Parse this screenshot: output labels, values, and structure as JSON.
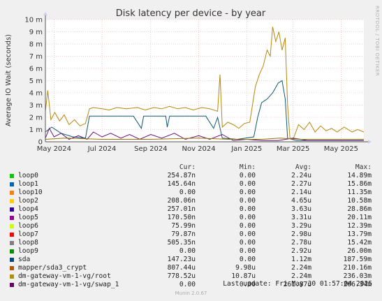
{
  "chart_data": {
    "type": "line",
    "title": "Disk latency per device - by year",
    "ylabel": "Average IO Wait (seconds)",
    "side_label": "RRDTOOL / TOBI OETIKER",
    "y_ticks": [
      {
        "v": 0,
        "label": "0"
      },
      {
        "v": 0.001,
        "label": "1 m"
      },
      {
        "v": 0.002,
        "label": "2 m"
      },
      {
        "v": 0.003,
        "label": "3 m"
      },
      {
        "v": 0.004,
        "label": "4 m"
      },
      {
        "v": 0.005,
        "label": "5 m"
      },
      {
        "v": 0.006,
        "label": "6 m"
      },
      {
        "v": 0.007,
        "label": "7 m"
      },
      {
        "v": 0.008,
        "label": "8 m"
      },
      {
        "v": 0.009,
        "label": "9 m"
      },
      {
        "v": 0.01,
        "label": "10 m"
      }
    ],
    "ylim": [
      0,
      0.01
    ],
    "x_range": [
      "2024-04-20",
      "2025-05-30"
    ],
    "x_ticks": [
      {
        "date": "2024-05-01",
        "label": "May 2024"
      },
      {
        "date": "2024-07-01",
        "label": "Jul 2024"
      },
      {
        "date": "2024-09-01",
        "label": "Sep 2024"
      },
      {
        "date": "2024-11-01",
        "label": "Nov 2024"
      },
      {
        "date": "2025-01-01",
        "label": "Jan 2025"
      },
      {
        "date": "2025-03-01",
        "label": "Mar 2025"
      },
      {
        "date": "2025-05-01",
        "label": "May 2025"
      }
    ],
    "grid": true,
    "series": [
      {
        "name": "dm-gateway-vm-1-vg/root",
        "color": "#b8860b",
        "points": [
          [
            "2024-04-20",
            0.0025
          ],
          [
            "2024-04-23",
            0.0042
          ],
          [
            "2024-04-27",
            0.0018
          ],
          [
            "2024-05-02",
            0.0024
          ],
          [
            "2024-05-08",
            0.0017
          ],
          [
            "2024-05-14",
            0.0022
          ],
          [
            "2024-05-20",
            0.0014
          ],
          [
            "2024-05-27",
            0.0018
          ],
          [
            "2024-06-03",
            0.0013
          ],
          [
            "2024-06-10",
            0.0015
          ],
          [
            "2024-06-15",
            0.0027
          ],
          [
            "2024-06-20",
            0.0028
          ],
          [
            "2024-07-01",
            0.0027
          ],
          [
            "2024-07-10",
            0.0026
          ],
          [
            "2024-07-20",
            0.0028
          ],
          [
            "2024-08-01",
            0.0027
          ],
          [
            "2024-08-15",
            0.0028
          ],
          [
            "2024-08-25",
            0.0026
          ],
          [
            "2024-09-05",
            0.0028
          ],
          [
            "2024-09-15",
            0.0027
          ],
          [
            "2024-09-25",
            0.0029
          ],
          [
            "2024-10-05",
            0.0027
          ],
          [
            "2024-10-15",
            0.0028
          ],
          [
            "2024-10-25",
            0.0026
          ],
          [
            "2024-11-05",
            0.0028
          ],
          [
            "2024-11-15",
            0.0027
          ],
          [
            "2024-11-25",
            0.0025
          ],
          [
            "2024-11-28",
            0.0055
          ],
          [
            "2024-12-01",
            0.0012
          ],
          [
            "2024-12-08",
            0.0016
          ],
          [
            "2024-12-15",
            0.0014
          ],
          [
            "2024-12-22",
            0.0011
          ],
          [
            "2024-12-29",
            0.0015
          ],
          [
            "2025-01-05",
            0.0016
          ],
          [
            "2025-01-12",
            0.0045
          ],
          [
            "2025-01-17",
            0.0055
          ],
          [
            "2025-01-22",
            0.0062
          ],
          [
            "2025-01-27",
            0.0075
          ],
          [
            "2025-01-31",
            0.007
          ],
          [
            "2025-02-03",
            0.0094
          ],
          [
            "2025-02-07",
            0.0082
          ],
          [
            "2025-02-11",
            0.009
          ],
          [
            "2025-02-15",
            0.0075
          ],
          [
            "2025-02-19",
            0.0085
          ],
          [
            "2025-02-22",
            0.003
          ],
          [
            "2025-02-25",
            0.0003
          ],
          [
            "2025-03-01",
            0.0002
          ],
          [
            "2025-03-08",
            0.0014
          ],
          [
            "2025-03-15",
            0.001
          ],
          [
            "2025-03-22",
            0.0016
          ],
          [
            "2025-03-29",
            0.0008
          ],
          [
            "2025-04-05",
            0.0013
          ],
          [
            "2025-04-12",
            0.0009
          ],
          [
            "2025-04-19",
            0.0011
          ],
          [
            "2025-04-26",
            0.0008
          ],
          [
            "2025-05-05",
            0.0012
          ],
          [
            "2025-05-15",
            0.0008
          ],
          [
            "2025-05-22",
            0.001
          ],
          [
            "2025-05-30",
            0.0008
          ]
        ]
      },
      {
        "name": "sda",
        "color": "#0b5a73",
        "points": [
          [
            "2024-04-20",
            0.0008
          ],
          [
            "2024-04-28",
            0.0012
          ],
          [
            "2024-05-10",
            0.0007
          ],
          [
            "2024-05-25",
            0.0004
          ],
          [
            "2024-06-10",
            0.0003
          ],
          [
            "2024-06-15",
            0.0021
          ],
          [
            "2024-07-01",
            0.0021
          ],
          [
            "2024-07-20",
            0.0021
          ],
          [
            "2024-08-10",
            0.0021
          ],
          [
            "2024-08-20",
            0.0011
          ],
          [
            "2024-08-23",
            0.0021
          ],
          [
            "2024-09-10",
            0.0021
          ],
          [
            "2024-09-20",
            0.0021
          ],
          [
            "2024-09-22",
            0.0012
          ],
          [
            "2024-09-25",
            0.0021
          ],
          [
            "2024-10-15",
            0.0021
          ],
          [
            "2024-11-10",
            0.0021
          ],
          [
            "2024-11-20",
            0.0011
          ],
          [
            "2024-11-25",
            0.002
          ],
          [
            "2024-12-01",
            0.0003
          ],
          [
            "2024-12-20",
            0.0002
          ],
          [
            "2025-01-10",
            0.0004
          ],
          [
            "2025-01-15",
            0.002
          ],
          [
            "2025-01-20",
            0.0032
          ],
          [
            "2025-01-27",
            0.0035
          ],
          [
            "2025-02-03",
            0.004
          ],
          [
            "2025-02-10",
            0.0048
          ],
          [
            "2025-02-15",
            0.005
          ],
          [
            "2025-02-19",
            0.0035
          ],
          [
            "2025-02-22",
            0.0003
          ],
          [
            "2025-03-05",
            0.0001
          ],
          [
            "2025-04-01",
            0.0001
          ],
          [
            "2025-05-30",
            0.0001
          ]
        ]
      },
      {
        "name": "dm-gateway-vm-1-vg/swap_1",
        "color": "#66137a",
        "points": [
          [
            "2024-04-20",
            0.0003
          ],
          [
            "2024-04-25",
            0.0011
          ],
          [
            "2024-05-01",
            0.0004
          ],
          [
            "2024-05-10",
            0.0007
          ],
          [
            "2024-05-20",
            0.0002
          ],
          [
            "2024-06-01",
            0.0005
          ],
          [
            "2024-06-12",
            0.0002
          ],
          [
            "2024-06-20",
            0.0008
          ],
          [
            "2024-07-01",
            0.0004
          ],
          [
            "2024-07-12",
            0.0007
          ],
          [
            "2024-07-25",
            0.0003
          ],
          [
            "2024-08-05",
            0.0006
          ],
          [
            "2024-08-18",
            0.0002
          ],
          [
            "2024-09-01",
            0.0006
          ],
          [
            "2024-09-15",
            0.0003
          ],
          [
            "2024-10-01",
            0.0007
          ],
          [
            "2024-10-15",
            0.0002
          ],
          [
            "2024-11-01",
            0.0005
          ],
          [
            "2024-11-15",
            0.0002
          ],
          [
            "2024-12-01",
            0.0006
          ],
          [
            "2024-12-15",
            0.0001
          ],
          [
            "2025-01-01",
            0.0002
          ],
          [
            "2025-01-20",
            0.0001
          ],
          [
            "2025-02-10",
            0.0001
          ],
          [
            "2025-03-01",
            0.0003
          ],
          [
            "2025-03-20",
            0.0001
          ],
          [
            "2025-04-10",
            0.0001
          ],
          [
            "2025-05-30",
            0.0001
          ]
        ]
      },
      {
        "name": "mapper/sda3_crypt",
        "color": "#9b6f00",
        "points": [
          [
            "2024-04-20",
            0.0002
          ],
          [
            "2024-05-15",
            0.0003
          ],
          [
            "2024-07-01",
            0.0002
          ],
          [
            "2024-09-01",
            0.0002
          ],
          [
            "2024-11-01",
            0.0003
          ],
          [
            "2024-12-10",
            0.0002
          ],
          [
            "2025-01-20",
            0.0002
          ],
          [
            "2025-02-12",
            0.0003
          ],
          [
            "2025-03-10",
            0.0002
          ],
          [
            "2025-05-30",
            0.0002
          ]
        ]
      }
    ]
  },
  "legend": {
    "headers": {
      "cur": "Cur:",
      "min": "Min:",
      "avg": "Avg:",
      "max": "Max:"
    },
    "rows": [
      {
        "name": "loop0",
        "color": "#00cc00",
        "cur": "254.87n",
        "min": "0.00",
        "avg": "2.24u",
        "max": "14.89m"
      },
      {
        "name": "loop1",
        "color": "#0066b3",
        "cur": "145.64n",
        "min": "0.00",
        "avg": "2.27u",
        "max": "15.86m"
      },
      {
        "name": "loop10",
        "color": "#ff8000",
        "cur": "0.00",
        "min": "0.00",
        "avg": "2.14u",
        "max": "11.35m"
      },
      {
        "name": "loop2",
        "color": "#ffcc00",
        "cur": "208.06n",
        "min": "0.00",
        "avg": "4.65u",
        "max": "10.58m"
      },
      {
        "name": "loop4",
        "color": "#330099",
        "cur": "257.01n",
        "min": "0.00",
        "avg": "3.63u",
        "max": "28.86m"
      },
      {
        "name": "loop5",
        "color": "#990099",
        "cur": "170.50n",
        "min": "0.00",
        "avg": "3.31u",
        "max": "20.11m"
      },
      {
        "name": "loop6",
        "color": "#ccff00",
        "cur": "75.99n",
        "min": "0.00",
        "avg": "3.29u",
        "max": "12.39m"
      },
      {
        "name": "loop7",
        "color": "#ff0000",
        "cur": "79.87n",
        "min": "0.00",
        "avg": "2.98u",
        "max": "13.79m"
      },
      {
        "name": "loop8",
        "color": "#808080",
        "cur": "505.35n",
        "min": "0.00",
        "avg": "2.78u",
        "max": "15.42m"
      },
      {
        "name": "loop9",
        "color": "#008f00",
        "cur": "0.00",
        "min": "0.00",
        "avg": "2.92u",
        "max": "26.00m"
      },
      {
        "name": "sda",
        "color": "#00487d",
        "cur": "147.23u",
        "min": "0.00",
        "avg": "1.12m",
        "max": "187.59m"
      },
      {
        "name": "mapper/sda3_crypt",
        "color": "#b35a00",
        "cur": "807.44u",
        "min": "9.98u",
        "avg": "2.24m",
        "max": "210.16m"
      },
      {
        "name": "dm-gateway-vm-1-vg/root",
        "color": "#b38f00",
        "cur": "778.52u",
        "min": "10.87u",
        "avg": "2.24m",
        "max": "236.03m"
      },
      {
        "name": "dm-gateway-vm-1-vg/swap_1",
        "color": "#6b006b",
        "cur": "0.00",
        "min": "0.00",
        "avg": "261.87u",
        "max": "206.34m"
      }
    ]
  },
  "footer": {
    "last_update": "Last update: Fri May 30 01:57:04 2025",
    "munin": "Munin 2.0.67"
  }
}
